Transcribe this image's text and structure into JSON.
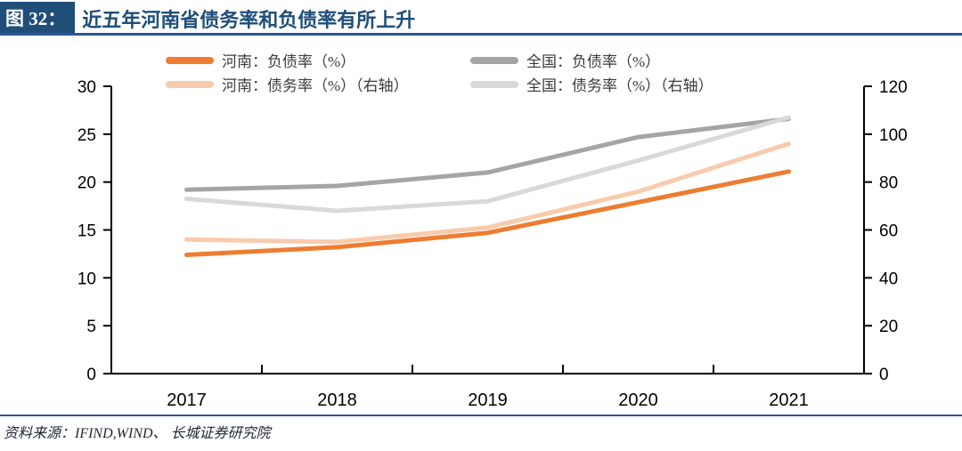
{
  "header": {
    "figure_label": "图 32：",
    "title": "近五年河南省债务率和负债率有所上升"
  },
  "footer": {
    "source": "资料来源：IFIND,WIND、 长城证券研究院"
  },
  "colors": {
    "accent_blue": "#1F4E79",
    "rule_blue": "#2F5597",
    "axis_black": "#000000",
    "henan_liability": "#ED7D31",
    "henan_debt": "#F8CBAD",
    "national_liability": "#A5A5A5",
    "national_debt": "#D9D9D9"
  },
  "chart_data": {
    "type": "line",
    "title": "近五年河南省债务率和负债率有所上升",
    "categories": [
      "2017",
      "2018",
      "2019",
      "2020",
      "2021"
    ],
    "series": [
      {
        "name": "河南：负债率（%）",
        "axis": "left",
        "color": "#ED7D31",
        "values": [
          12.4,
          13.2,
          14.7,
          17.9,
          21.1
        ]
      },
      {
        "name": "全国：负债率（%）",
        "axis": "left",
        "color": "#A5A5A5",
        "values": [
          19.2,
          19.6,
          21.0,
          24.7,
          26.6
        ]
      },
      {
        "name": "河南：债务率（%）（右轴）",
        "axis": "right",
        "color": "#F8CBAD",
        "values": [
          56,
          55,
          61,
          76,
          96
        ]
      },
      {
        "name": "全国：债务率（%）（右轴）",
        "axis": "right",
        "color": "#D9D9D9",
        "values": [
          73,
          68,
          72,
          89,
          107
        ]
      }
    ],
    "left_axis": {
      "min": 0,
      "max": 30,
      "ticks": [
        0,
        5,
        10,
        15,
        20,
        25,
        30
      ]
    },
    "right_axis": {
      "min": 0,
      "max": 120,
      "ticks": [
        0,
        20,
        40,
        60,
        80,
        100,
        120
      ]
    },
    "legend_position": "top",
    "grid": false,
    "draw_order": [
      1,
      3,
      2,
      0
    ]
  }
}
